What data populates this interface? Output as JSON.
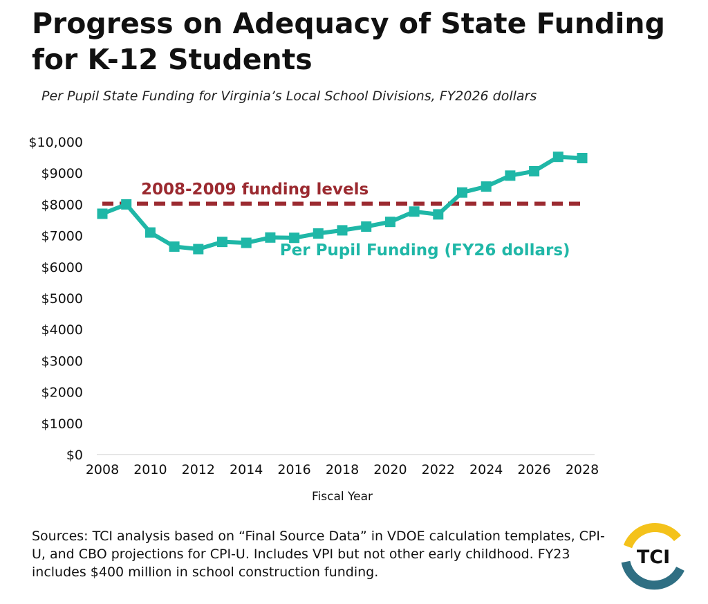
{
  "title": "Progress on Adequacy of State Funding for K-12 Students",
  "subtitle": "Per Pupil State Funding for Virginia’s Local School Divisions, FY2026 dollars",
  "sources": "Sources: TCI analysis based on “Final Source Data” in VDOE calculation templates, CPI-U, and CBO projections for CPI-U. Includes VPI but not other early childhood. FY23 includes $400 million in school construction funding.",
  "logo": {
    "text": "TCI",
    "colors": {
      "yellow": "#f4c21b",
      "blue": "#2f6f83"
    }
  },
  "chart_data": {
    "type": "line",
    "title": "Progress on Adequacy of State Funding for K-12 Students",
    "subtitle": "Per Pupil State Funding for Virginia’s Local School Divisions, FY2026 dollars",
    "xlabel": "Fiscal Year",
    "ylabel": "",
    "xlim": [
      2008,
      2028
    ],
    "ylim": [
      0,
      10000
    ],
    "xticks": [
      2008,
      2010,
      2012,
      2014,
      2016,
      2018,
      2020,
      2022,
      2024,
      2026,
      2028
    ],
    "yticks": [
      0,
      1000,
      2000,
      3000,
      4000,
      5000,
      6000,
      7000,
      8000,
      9000,
      10000
    ],
    "ytick_labels": [
      "$0",
      "$1000",
      "$2000",
      "$3000",
      "$4000",
      "$5000",
      "$6000",
      "$7000",
      "$8000",
      "$9000",
      "$10,000"
    ],
    "grid": false,
    "legend": "none",
    "series": [
      {
        "name": "Per Pupil Funding (FY26 dollars)",
        "color": "#1fb7a7",
        "marker": "square",
        "x": [
          2008,
          2009,
          2010,
          2011,
          2012,
          2013,
          2014,
          2015,
          2016,
          2017,
          2018,
          2019,
          2020,
          2021,
          2022,
          2023,
          2024,
          2025,
          2026,
          2027,
          2028
        ],
        "values": [
          7700,
          8000,
          7100,
          6650,
          6570,
          6800,
          6770,
          6940,
          6930,
          7070,
          7170,
          7290,
          7440,
          7770,
          7680,
          8380,
          8570,
          8920,
          9060,
          9520,
          9480
        ]
      }
    ],
    "reference_line": {
      "name": "2008-2009 funding levels",
      "value": 8020,
      "color": "#9b2a30",
      "style": "dashed"
    },
    "annotations": [
      {
        "text": "2008-2009 funding levels",
        "color": "#9b2a30"
      },
      {
        "text": "Per Pupil Funding (FY26 dollars)",
        "color": "#1fb7a7"
      }
    ]
  }
}
